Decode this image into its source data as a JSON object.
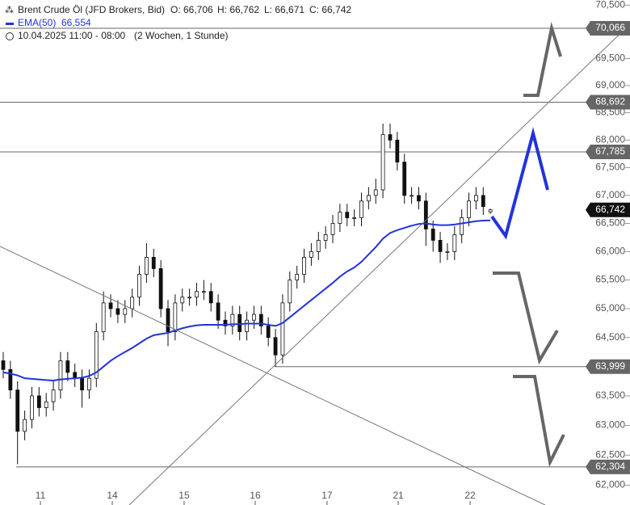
{
  "chart_data": {
    "type": "candlestick",
    "title": "Brent Crude Öl (JFD Brokers, Bid)",
    "ohlc_labels": [
      "O: 66,706",
      "H: 66,762",
      "L: 66,671",
      "C: 66,742"
    ],
    "date_range": "10.04.2025 11:00 - 08:00",
    "period": "(2 Wochen, 1 Stunde)",
    "log_scale": true,
    "xlim": [
      -0.45,
      81.85
    ],
    "ylim": [
      61672,
      70598
    ],
    "xticks": [
      {
        "value": 5.19,
        "label": "11"
      },
      {
        "value": 15.22,
        "label": "14"
      },
      {
        "value": 25.25,
        "label": "15"
      },
      {
        "value": 35.17,
        "label": "16"
      },
      {
        "value": 45.2,
        "label": "17"
      },
      {
        "value": 55.13,
        "label": "21"
      },
      {
        "value": 65.17,
        "label": "22"
      }
    ],
    "yticks": [
      {
        "value": 70500,
        "label": "70,500"
      },
      {
        "value": 69500,
        "label": "69,500"
      },
      {
        "value": 69000,
        "label": "69,000"
      },
      {
        "value": 68500,
        "label": "68,500"
      },
      {
        "value": 68000,
        "label": "68,000"
      },
      {
        "value": 67500,
        "label": "67,500"
      },
      {
        "value": 67000,
        "label": "67,000"
      },
      {
        "value": 66500,
        "label": "66,500"
      },
      {
        "value": 66000,
        "label": "66,000"
      },
      {
        "value": 65500,
        "label": "65,500"
      },
      {
        "value": 65000,
        "label": "65,000"
      },
      {
        "value": 64500,
        "label": "64,500"
      },
      {
        "value": 63500,
        "label": "63,500"
      },
      {
        "value": 63000,
        "label": "63,000"
      },
      {
        "value": 62500,
        "label": "62,500"
      },
      {
        "value": 62000,
        "label": "62,000"
      }
    ],
    "x": [
      0,
      1,
      2,
      3,
      4,
      5,
      6,
      7,
      8,
      9,
      10,
      11,
      12,
      13,
      14,
      15,
      16,
      17,
      18,
      19,
      20,
      21,
      22,
      23,
      24,
      25,
      26,
      27,
      28,
      29,
      30,
      31,
      32,
      33,
      34,
      35,
      36,
      37,
      38,
      39,
      40,
      41,
      42,
      43,
      44,
      45,
      46,
      47,
      48,
      49,
      50,
      51,
      52,
      53,
      54,
      55,
      56,
      57,
      58,
      59,
      60,
      61,
      62,
      63,
      64,
      65,
      66,
      67,
      68
    ],
    "open": [
      64100,
      63950,
      63600,
      62900,
      63100,
      63500,
      63300,
      63400,
      63600,
      64100,
      63900,
      63800,
      63600,
      63800,
      64600,
      65100,
      65000,
      64900,
      65000,
      65200,
      65600,
      65900,
      65700,
      65000,
      64600,
      65100,
      65200,
      65200,
      65300,
      65300,
      65100,
      64800,
      64700,
      64900,
      64600,
      64800,
      64900,
      64700,
      64500,
      64200,
      65100,
      65500,
      65600,
      65900,
      66000,
      66200,
      66300,
      66500,
      66700,
      66600,
      66600,
      66900,
      67000,
      67100,
      68100,
      68000,
      67600,
      67000,
      67000,
      66900,
      66400,
      66200,
      66000,
      66000,
      66300,
      66600,
      66900,
      67000,
      66706
    ],
    "high": [
      64250,
      64100,
      63750,
      63250,
      63650,
      63650,
      63550,
      63750,
      64250,
      64250,
      64050,
      63950,
      63950,
      64750,
      65300,
      65250,
      65150,
      65150,
      65350,
      65750,
      66150,
      66050,
      65850,
      65150,
      65250,
      65350,
      65350,
      65450,
      65500,
      65450,
      65250,
      64950,
      65050,
      65050,
      64950,
      65050,
      65050,
      64850,
      64650,
      65250,
      65650,
      65750,
      66050,
      66150,
      66350,
      66450,
      66650,
      66850,
      66850,
      66750,
      67050,
      67150,
      67300,
      68300,
      68300,
      68150,
      67750,
      67150,
      67150,
      67050,
      66550,
      66350,
      66150,
      66450,
      66750,
      67050,
      67150,
      67150,
      66762
    ],
    "low": [
      63800,
      63450,
      62350,
      62750,
      62950,
      63150,
      63150,
      63250,
      63450,
      63750,
      63650,
      63300,
      63450,
      63650,
      64450,
      64850,
      64750,
      64750,
      64850,
      65050,
      65450,
      65550,
      64850,
      64350,
      64450,
      64950,
      65050,
      65050,
      65150,
      64950,
      64650,
      64550,
      64550,
      64450,
      64450,
      64650,
      64550,
      64350,
      64000,
      64050,
      64950,
      65350,
      65450,
      65750,
      65850,
      66050,
      66150,
      66350,
      66450,
      66450,
      66450,
      66750,
      66850,
      66950,
      67850,
      67450,
      66850,
      66850,
      66750,
      66100,
      66000,
      65800,
      65850,
      65850,
      66150,
      66450,
      66750,
      66650,
      66671
    ],
    "close": [
      63950,
      63600,
      62900,
      63100,
      63500,
      63300,
      63400,
      63600,
      64100,
      63900,
      63800,
      63600,
      63800,
      64600,
      65100,
      65000,
      64900,
      65000,
      65200,
      65600,
      65900,
      65700,
      65000,
      64600,
      65100,
      65200,
      65200,
      65300,
      65300,
      65100,
      64800,
      64700,
      64900,
      64600,
      64800,
      64900,
      64700,
      64500,
      64200,
      65100,
      65500,
      65600,
      65900,
      66000,
      66200,
      66300,
      66500,
      66700,
      66600,
      66600,
      66900,
      67000,
      67100,
      68100,
      68000,
      67600,
      67000,
      67000,
      66900,
      66400,
      66200,
      66000,
      66000,
      66300,
      66600,
      66900,
      67000,
      66800,
      66742
    ],
    "series": [
      {
        "name": "EMA(50)",
        "color": "#2233dd",
        "value_label": "66,554",
        "values": [
          63900,
          63880,
          63850,
          63800,
          63790,
          63780,
          63770,
          63760,
          63780,
          63790,
          63800,
          63810,
          63840,
          63900,
          64000,
          64100,
          64180,
          64250,
          64320,
          64400,
          64480,
          64540,
          64560,
          64580,
          64620,
          64660,
          64690,
          64710,
          64720,
          64720,
          64720,
          64720,
          64730,
          64730,
          64740,
          64740,
          64740,
          64720,
          64700,
          64750,
          64850,
          64950,
          65050,
          65150,
          65250,
          65350,
          65450,
          65560,
          65650,
          65720,
          65820,
          65950,
          66080,
          66230,
          66330,
          66380,
          66420,
          66460,
          66490,
          66500,
          66480,
          66470,
          66470,
          66480,
          66500,
          66520,
          66540,
          66550,
          66554
        ]
      }
    ],
    "levels": [
      {
        "value": 70066,
        "label": "70,066"
      },
      {
        "value": 68692,
        "label": "68,692"
      },
      {
        "value": 67785,
        "label": "67,785"
      },
      {
        "value": 63999,
        "label": "63,999"
      },
      {
        "value": 62304,
        "label": "62,304"
      }
    ],
    "current_price": {
      "value": 66742,
      "label": "66,742"
    }
  }
}
